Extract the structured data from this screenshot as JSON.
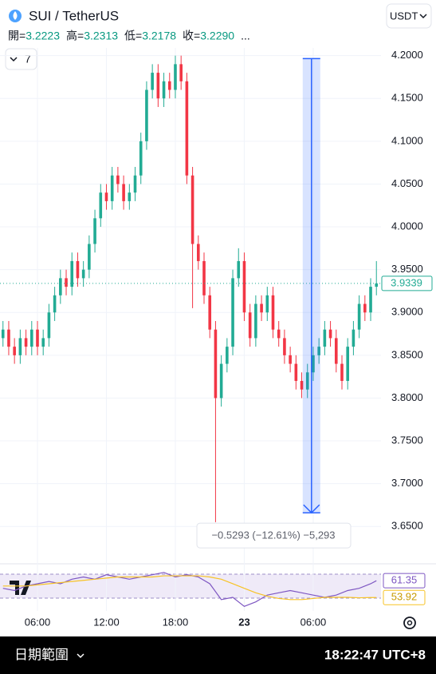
{
  "header": {
    "symbol": "SUI / TetherUS",
    "ohlc": [
      {
        "label": "開=",
        "value": "3.2223"
      },
      {
        "label": "高=",
        "value": "3.2313"
      },
      {
        "label": "低=",
        "value": "3.2178"
      },
      {
        "label": "收=",
        "value": "3.2290"
      }
    ],
    "more": "...",
    "indicator_count": "7",
    "currency": "USDT"
  },
  "chart_data": [
    {
      "type": "candlestick",
      "x": [
        3,
        3.5,
        4,
        4.5,
        5,
        5.5,
        6,
        6.5,
        7,
        7.5,
        8,
        8.5,
        9,
        9.5,
        10,
        10.5,
        11,
        11.5,
        12,
        12.5,
        13,
        13.5,
        14,
        14.5,
        15,
        15.5,
        16,
        16.5,
        17,
        17.5,
        18,
        18.5,
        19,
        19.5,
        20,
        20.5,
        21,
        21.5,
        22,
        22.5,
        23,
        23.5,
        24,
        24.5,
        25,
        25.5,
        26,
        26.5,
        27,
        27.5,
        28,
        28.5,
        29,
        29.5,
        30,
        30.5,
        31,
        31.5,
        32,
        32.5,
        33,
        33.5,
        34,
        34.5,
        35,
        35.5
      ],
      "open": [
        3.87,
        3.88,
        3.86,
        3.85,
        3.87,
        3.86,
        3.88,
        3.86,
        3.87,
        3.9,
        3.92,
        3.94,
        3.93,
        3.96,
        3.94,
        3.95,
        3.98,
        4.01,
        4.04,
        4.03,
        4.06,
        4.05,
        4.03,
        4.04,
        4.06,
        4.1,
        4.16,
        4.18,
        4.15,
        4.17,
        4.16,
        4.19,
        4.17,
        4.06,
        3.98,
        3.96,
        3.92,
        3.88,
        3.8,
        3.84,
        3.86,
        3.94,
        3.96,
        3.9,
        3.87,
        3.91,
        3.9,
        3.92,
        3.88,
        3.87,
        3.85,
        3.84,
        3.82,
        3.81,
        3.83,
        3.85,
        3.86,
        3.88,
        3.87,
        3.84,
        3.82,
        3.86,
        3.88,
        3.91,
        3.9,
        3.93
      ],
      "high": [
        3.89,
        3.89,
        3.87,
        3.88,
        3.88,
        3.89,
        3.89,
        3.88,
        3.91,
        3.93,
        3.95,
        3.95,
        3.97,
        3.97,
        3.96,
        3.99,
        4.02,
        4.05,
        4.05,
        4.07,
        4.07,
        4.06,
        4.05,
        4.07,
        4.11,
        4.17,
        4.19,
        4.19,
        4.18,
        4.18,
        4.2,
        4.2,
        4.18,
        4.07,
        3.99,
        3.97,
        3.93,
        3.89,
        3.85,
        3.87,
        3.95,
        3.975,
        3.97,
        3.91,
        3.92,
        3.92,
        3.93,
        3.93,
        3.89,
        3.88,
        3.86,
        3.85,
        3.83,
        3.84,
        3.86,
        3.87,
        3.89,
        3.89,
        3.88,
        3.85,
        3.87,
        3.89,
        3.92,
        3.92,
        3.94,
        3.96
      ],
      "low": [
        3.86,
        3.85,
        3.84,
        3.84,
        3.85,
        3.85,
        3.85,
        3.85,
        3.86,
        3.89,
        3.91,
        3.92,
        3.92,
        3.93,
        3.93,
        3.94,
        3.97,
        4.0,
        4.02,
        4.02,
        4.04,
        4.02,
        4.02,
        4.03,
        4.05,
        4.09,
        4.15,
        4.14,
        4.14,
        4.15,
        4.15,
        4.16,
        4.05,
        3.905,
        3.95,
        3.91,
        3.87,
        3.655,
        3.79,
        3.83,
        3.85,
        3.93,
        3.89,
        3.86,
        3.86,
        3.89,
        3.89,
        3.87,
        3.86,
        3.84,
        3.83,
        3.81,
        3.8,
        3.8,
        3.82,
        3.84,
        3.85,
        3.86,
        3.83,
        3.81,
        3.81,
        3.85,
        3.87,
        3.89,
        3.89,
        3.92
      ],
      "close": [
        3.88,
        3.86,
        3.85,
        3.87,
        3.86,
        3.88,
        3.86,
        3.87,
        3.9,
        3.92,
        3.94,
        3.93,
        3.96,
        3.94,
        3.95,
        3.98,
        4.01,
        4.04,
        4.03,
        4.06,
        4.05,
        4.03,
        4.04,
        4.06,
        4.1,
        4.16,
        4.18,
        4.15,
        4.17,
        4.16,
        4.19,
        4.17,
        4.06,
        3.98,
        3.96,
        3.92,
        3.88,
        3.8,
        3.84,
        3.86,
        3.94,
        3.96,
        3.9,
        3.87,
        3.91,
        3.9,
        3.92,
        3.88,
        3.87,
        3.85,
        3.84,
        3.82,
        3.81,
        3.83,
        3.85,
        3.86,
        3.88,
        3.87,
        3.84,
        3.82,
        3.86,
        3.88,
        3.91,
        3.9,
        3.93,
        3.9339
      ],
      "up_color": "#22ab94",
      "down_color": "#f23645",
      "xlim": [
        2.74,
        35.9
      ],
      "xticks": [
        {
          "value": 6,
          "label": "06:00"
        },
        {
          "value": 12,
          "label": "12:00"
        },
        {
          "value": 18,
          "label": "18:00"
        },
        {
          "value": 24,
          "label": "23"
        },
        {
          "value": 30,
          "label": "06:00"
        }
      ],
      "ylim": [
        3.612,
        4.209
      ],
      "yticks": [
        {
          "value": 3.65,
          "label": "3.6500"
        },
        {
          "value": 3.7,
          "label": "3.7000"
        },
        {
          "value": 3.75,
          "label": "3.7500"
        },
        {
          "value": 3.8,
          "label": "3.8000"
        },
        {
          "value": 3.85,
          "label": "3.8500"
        },
        {
          "value": 3.9,
          "label": "3.9000"
        },
        {
          "value": 3.95,
          "label": "3.9500"
        },
        {
          "value": 4.0,
          "label": "4.0000"
        },
        {
          "value": 4.05,
          "label": "4.0500"
        },
        {
          "value": 4.1,
          "label": "4.1000"
        },
        {
          "value": 4.15,
          "label": "4.1500"
        },
        {
          "value": 4.2,
          "label": "4.2000"
        }
      ],
      "grid": true,
      "measure": {
        "x": 29.85,
        "from": 4.1965,
        "to": 3.666,
        "label": "−0.5293 (−12.61%) −5,293",
        "color": "#2962ff"
      }
    },
    {
      "type": "line",
      "x": [
        3,
        4,
        5,
        6,
        7,
        8,
        9,
        10,
        11,
        12,
        13,
        14,
        15,
        16,
        17,
        18,
        19,
        20,
        21,
        22,
        23,
        24,
        25,
        26,
        27,
        28,
        29,
        30,
        31,
        32,
        33,
        34,
        35,
        35.5
      ],
      "series": [
        {
          "color": "#7e57c2",
          "values": [
            58,
            57,
            59,
            60,
            61,
            60,
            62,
            63,
            62,
            64,
            63,
            62,
            63,
            64,
            65,
            63,
            64,
            63,
            60,
            53,
            54,
            50,
            52,
            55,
            56,
            57,
            56,
            55,
            54,
            55,
            57,
            58,
            60,
            61.35
          ]
        },
        {
          "color": "#f7c325",
          "values": [
            59,
            59,
            59,
            59.5,
            60,
            60.5,
            61,
            61.5,
            62,
            62.5,
            63,
            63,
            63,
            63,
            63.5,
            63.5,
            63.5,
            63.5,
            63,
            62,
            60,
            58,
            56,
            54.5,
            53.5,
            53,
            53,
            53.5,
            54,
            54,
            54,
            53.8,
            53.9,
            53.92
          ]
        }
      ],
      "xlim": [
        2.74,
        35.9
      ],
      "ylim": [
        48,
        66.7
      ]
    }
  ],
  "footer": {
    "range": "日期範圍",
    "clock": "18:22:47 UTC+8"
  }
}
